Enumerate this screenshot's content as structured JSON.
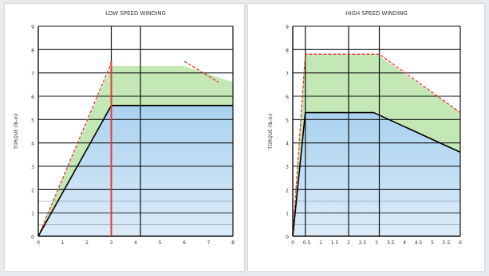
{
  "chart_data": [
    {
      "type": "area",
      "title": "LOW SPEED WINDING",
      "subtitle": "",
      "ylabel": "TORQUE (lb-in)",
      "xlabel": "",
      "ylim": [
        0,
        9
      ],
      "xlim": [
        0,
        8
      ],
      "xticks": [
        "0",
        "1",
        "2",
        "3",
        "4",
        "5",
        "6",
        "7",
        "8"
      ],
      "legend": "none",
      "grid": true,
      "series": [
        {
          "name": "",
          "kind": "peak-line",
          "color": "#e53935",
          "x": [
            0,
            2.95,
            3.0
          ],
          "y": [
            0,
            7.3,
            7.5
          ]
        },
        {
          "name": "",
          "kind": "continuous-line",
          "color": "#000000",
          "x": [
            0,
            3.0,
            8.0
          ],
          "y": [
            0,
            5.6,
            5.6
          ]
        },
        {
          "name": "",
          "kind": "peak-limit",
          "color": "#e53935",
          "x": [
            6.0,
            7.4
          ],
          "y": [
            7.5,
            6.6
          ]
        }
      ],
      "zones": [
        {
          "label": "",
          "color": "#b9e3a8",
          "x": [
            0,
            3.0,
            6.0,
            8.0
          ],
          "y_lower": [
            0,
            5.6,
            5.6,
            5.6
          ],
          "y_upper": [
            0,
            7.3,
            7.3,
            6.6
          ]
        },
        {
          "label": "",
          "color": "#8fc3ea",
          "x": [
            0,
            3.0,
            8.0
          ],
          "y_upper": [
            0,
            5.6,
            5.6
          ]
        }
      ],
      "vertical_markers": [
        {
          "x": 3.0,
          "color": "#e53935"
        }
      ]
    },
    {
      "type": "area",
      "title": "HIGH SPEED WINDING",
      "subtitle": "",
      "ylabel": "TORQUE (lb-in)",
      "xlabel": "",
      "ylim": [
        0,
        9
      ],
      "xlim": [
        0,
        6
      ],
      "xticks": [
        "0",
        "0.5",
        "1",
        "1.5",
        "2",
        "2.5",
        "3",
        "3.5",
        "4",
        "4.5",
        "5",
        "5.5",
        "6"
      ],
      "legend": "none",
      "grid": true,
      "series": [
        {
          "name": "",
          "kind": "peak-line",
          "color": "#e53935",
          "x": [
            0,
            0.45,
            3.1,
            6.0
          ],
          "y": [
            0,
            7.8,
            7.8,
            5.3
          ]
        },
        {
          "name": "",
          "kind": "continuous-line",
          "color": "#000000",
          "x": [
            0,
            0.45,
            2.9,
            6.0
          ],
          "y": [
            0,
            5.3,
            5.3,
            3.6
          ]
        }
      ],
      "zones": [
        {
          "label": "",
          "color": "#b9e3a8",
          "x": [
            0,
            0.45,
            3.0,
            6.0
          ],
          "y_lower": [
            0,
            5.3,
            5.3,
            3.6
          ],
          "y_upper": [
            0,
            7.8,
            7.8,
            5.3
          ]
        },
        {
          "label": "",
          "color": "#8fc3ea",
          "x": [
            0,
            0.45,
            2.9,
            6.0
          ],
          "y_upper": [
            0,
            5.3,
            5.3,
            3.6
          ]
        }
      ],
      "vertical_markers": []
    }
  ]
}
